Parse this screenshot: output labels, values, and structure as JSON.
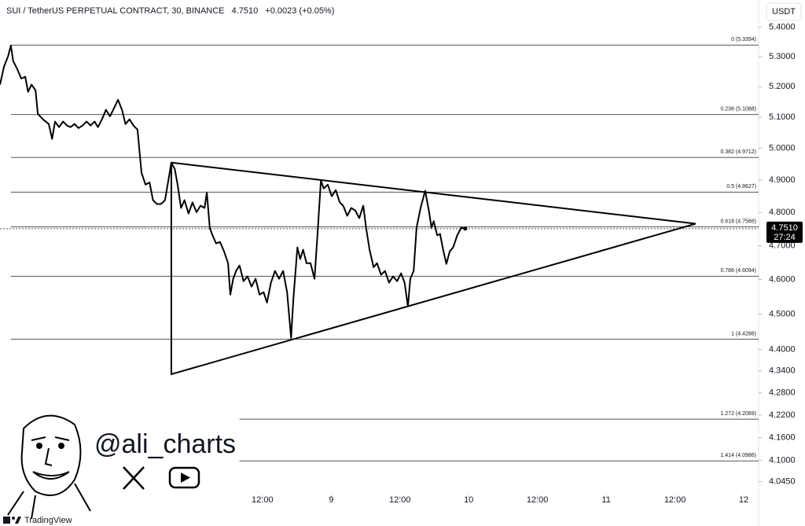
{
  "chart_data": {
    "type": "line",
    "title": "SUI / TetherUS PERPETUAL CONTRACT, 30, BINANCE",
    "last_price": {
      "value": 4.751,
      "label": "4.7510"
    },
    "change": "+0.0023 (+0.05%)",
    "currency": "USDT",
    "countdown": "27:24",
    "log_scale": true,
    "color": "#000000",
    "xlim": [
      -33.8,
      98.6
    ],
    "ylim": [
      4.01,
      5.44
    ],
    "xticks": [
      {
        "value": 12,
        "label": "12:00"
      },
      {
        "value": 24,
        "label": "9"
      },
      {
        "value": 36,
        "label": "12:00"
      },
      {
        "value": 48,
        "label": "10"
      },
      {
        "value": 60,
        "label": "12:00"
      },
      {
        "value": 72,
        "label": "11"
      },
      {
        "value": 84,
        "label": "12:00"
      },
      {
        "value": 96,
        "label": "12"
      }
    ],
    "yticks": [
      {
        "value": 5.4,
        "label": "5.4000"
      },
      {
        "value": 5.3,
        "label": "5.3000"
      },
      {
        "value": 5.2,
        "label": "5.2000"
      },
      {
        "value": 5.1,
        "label": "5.1000"
      },
      {
        "value": 5.0,
        "label": "5.0000"
      },
      {
        "value": 4.9,
        "label": "4.9000"
      },
      {
        "value": 4.8,
        "label": "4.8000"
      },
      {
        "value": 4.7,
        "label": "4.7000"
      },
      {
        "value": 4.6,
        "label": "4.6000"
      },
      {
        "value": 4.5,
        "label": "4.5000"
      },
      {
        "value": 4.4,
        "label": "4.4000"
      },
      {
        "value": 4.34,
        "label": "4.3400"
      },
      {
        "value": 4.28,
        "label": "4.2800"
      },
      {
        "value": 4.22,
        "label": "4.2200"
      },
      {
        "value": 4.16,
        "label": "4.1600"
      },
      {
        "value": 4.1,
        "label": "4.1000"
      },
      {
        "value": 4.045,
        "label": "4.0450"
      }
    ],
    "x": [
      -33.8,
      -33.1,
      -32.4,
      -31.9,
      -31.5,
      -30.8,
      -30.1,
      -29.4,
      -28.9,
      -28.3,
      -27.6,
      -27.2,
      -26.3,
      -25.3,
      -24.7,
      -24.2,
      -23.5,
      -22.8,
      -22.1,
      -21.5,
      -20.8,
      -20.1,
      -19.4,
      -18.7,
      -18.0,
      -17.3,
      -16.7,
      -16.0,
      -15.3,
      -14.6,
      -13.9,
      -13.2,
      -12.5,
      -11.9,
      -11.2,
      -10.5,
      -9.8,
      -9.1,
      -8.4,
      -7.7,
      -7.1,
      -6.4,
      -5.7,
      -5.0,
      -4.3,
      -3.9,
      -3.3,
      -2.8,
      -2.2,
      -1.6,
      -0.9,
      -0.2,
      0.5,
      1.2,
      1.9,
      2.3,
      2.8,
      3.2,
      3.9,
      4.6,
      5.3,
      6.0,
      6.4,
      6.9,
      7.4,
      8.0,
      8.7,
      9.4,
      10.1,
      10.8,
      11.5,
      12.2,
      12.8,
      13.5,
      14.2,
      14.9,
      15.6,
      16.3,
      17.0,
      17.4,
      18.1,
      18.6,
      19.1,
      19.7,
      20.4,
      21.1,
      21.6,
      22.2,
      22.7,
      23.4,
      24.1,
      24.8,
      25.5,
      26.1,
      26.8,
      27.5,
      28.2,
      28.9,
      29.6,
      30.1,
      30.7,
      31.4,
      32.0,
      32.7,
      33.4,
      34.1,
      34.8,
      35.5,
      36.2,
      36.8,
      37.4,
      37.8,
      38.4,
      38.9,
      39.6,
      40.4,
      41.1,
      41.5,
      41.9,
      42.5,
      43.0,
      43.6,
      44.1,
      44.7,
      45.3,
      46.0,
      46.7,
      47.4
    ],
    "values": [
      5.207,
      5.267,
      5.301,
      5.338,
      5.285,
      5.259,
      5.227,
      5.233,
      5.183,
      5.207,
      5.188,
      5.111,
      5.093,
      5.078,
      5.03,
      5.086,
      5.068,
      5.086,
      5.073,
      5.068,
      5.078,
      5.065,
      5.073,
      5.086,
      5.073,
      5.086,
      5.068,
      5.093,
      5.124,
      5.103,
      5.129,
      5.157,
      5.124,
      5.078,
      5.093,
      5.073,
      5.06,
      4.923,
      4.886,
      4.893,
      4.838,
      4.826,
      4.826,
      4.838,
      4.911,
      4.955,
      4.935,
      4.886,
      4.814,
      4.838,
      4.797,
      4.831,
      4.801,
      4.821,
      4.814,
      4.862,
      4.754,
      4.735,
      4.707,
      4.711,
      4.683,
      4.648,
      4.556,
      4.602,
      4.625,
      4.641,
      4.595,
      4.609,
      4.579,
      4.602,
      4.556,
      4.563,
      4.533,
      4.591,
      4.625,
      4.602,
      4.625,
      4.563,
      4.432,
      4.544,
      4.695,
      4.66,
      4.688,
      4.648,
      4.648,
      4.602,
      4.731,
      4.899,
      4.874,
      4.886,
      4.85,
      4.869,
      4.831,
      4.821,
      4.79,
      4.814,
      4.806,
      4.783,
      4.821,
      4.754,
      4.688,
      4.636,
      4.648,
      4.614,
      4.625,
      4.591,
      4.609,
      4.595,
      4.618,
      4.591,
      4.522,
      4.602,
      4.625,
      4.754,
      4.814,
      4.867,
      4.801,
      4.754,
      4.774,
      4.731,
      4.735,
      4.683,
      4.646,
      4.683,
      4.695,
      4.731,
      4.754,
      4.751
    ],
    "fib_levels": [
      {
        "label": "0 (5.3394)",
        "price": 5.3394,
        "start": -31.9
      },
      {
        "label": "0.236 (5.1088)",
        "price": 5.1088,
        "start": -31.9
      },
      {
        "label": "0.382 (4.9712)",
        "price": 4.9712,
        "start": -31.9
      },
      {
        "label": "0.5 (4.8627)",
        "price": 4.8627,
        "start": -31.9
      },
      {
        "label": "0.618 (4.7566)",
        "price": 4.7566,
        "start": -31.9
      },
      {
        "label": "0.786 (4.6094)",
        "price": 4.6094,
        "start": -31.9
      },
      {
        "label": "1 (4.4286)",
        "price": 4.4286,
        "start": -31.9
      },
      {
        "label": "1.272 (4.2089)",
        "price": 4.2089,
        "start": 8.0
      },
      {
        "label": "1.414 (4.0986)",
        "price": 4.0986,
        "start": 8.0
      }
    ],
    "triangle": {
      "x": [
        -3.9,
        -3.9,
        87.6,
        -3.9
      ],
      "y": [
        4.955,
        4.331,
        4.766,
        4.955
      ]
    }
  },
  "watermark": {
    "handle": "@ali_charts"
  },
  "footer": {
    "brand": "TradingView"
  }
}
